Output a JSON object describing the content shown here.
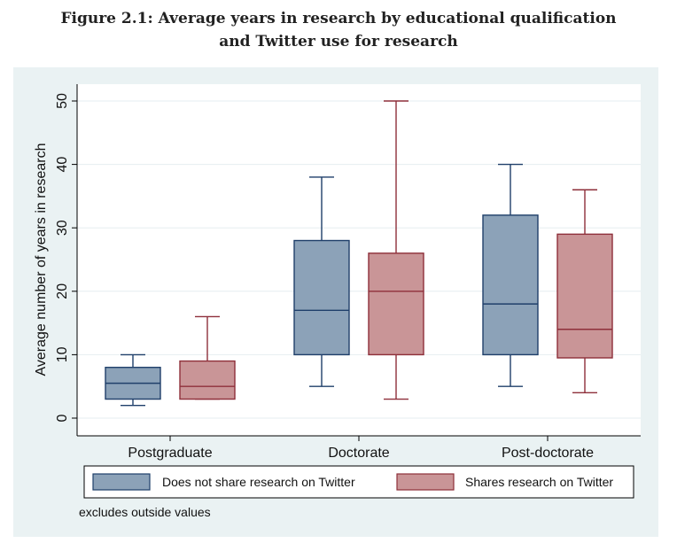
{
  "figure": {
    "title_line1": "Figure 2.1: Average years in research by educational qualification",
    "title_line2": "and Twitter use for research"
  },
  "chart_data": {
    "type": "boxplot",
    "ylabel": "Average number of years in research",
    "ylim": [
      0,
      50
    ],
    "yticks": [
      "0",
      "10",
      "20",
      "30",
      "40",
      "50"
    ],
    "categories": [
      "Postgraduate",
      "Doctorate",
      "Post-doctorate"
    ],
    "series": [
      {
        "name": "Does not share research on Twitter",
        "fill": "#8ca2b8",
        "stroke": "#1f3f6a",
        "boxes": [
          {
            "min": 2,
            "q1": 3,
            "median": 5.5,
            "q3": 8,
            "max": 10
          },
          {
            "min": 5,
            "q1": 10,
            "median": 17,
            "q3": 28,
            "max": 38
          },
          {
            "min": 5,
            "q1": 10,
            "median": 18,
            "q3": 32,
            "max": 40
          }
        ]
      },
      {
        "name": "Shares research on Twitter",
        "fill": "#c99597",
        "stroke": "#8e2f3a",
        "boxes": [
          {
            "min": 3,
            "q1": 3,
            "median": 5,
            "q3": 9,
            "max": 16
          },
          {
            "min": 3,
            "q1": 10,
            "median": 20,
            "q3": 26,
            "max": 50
          },
          {
            "min": 4,
            "q1": 9.5,
            "median": 14,
            "q3": 29,
            "max": 36
          }
        ]
      }
    ],
    "note": "excludes outside values",
    "grid": true,
    "legend_position": "bottom"
  }
}
